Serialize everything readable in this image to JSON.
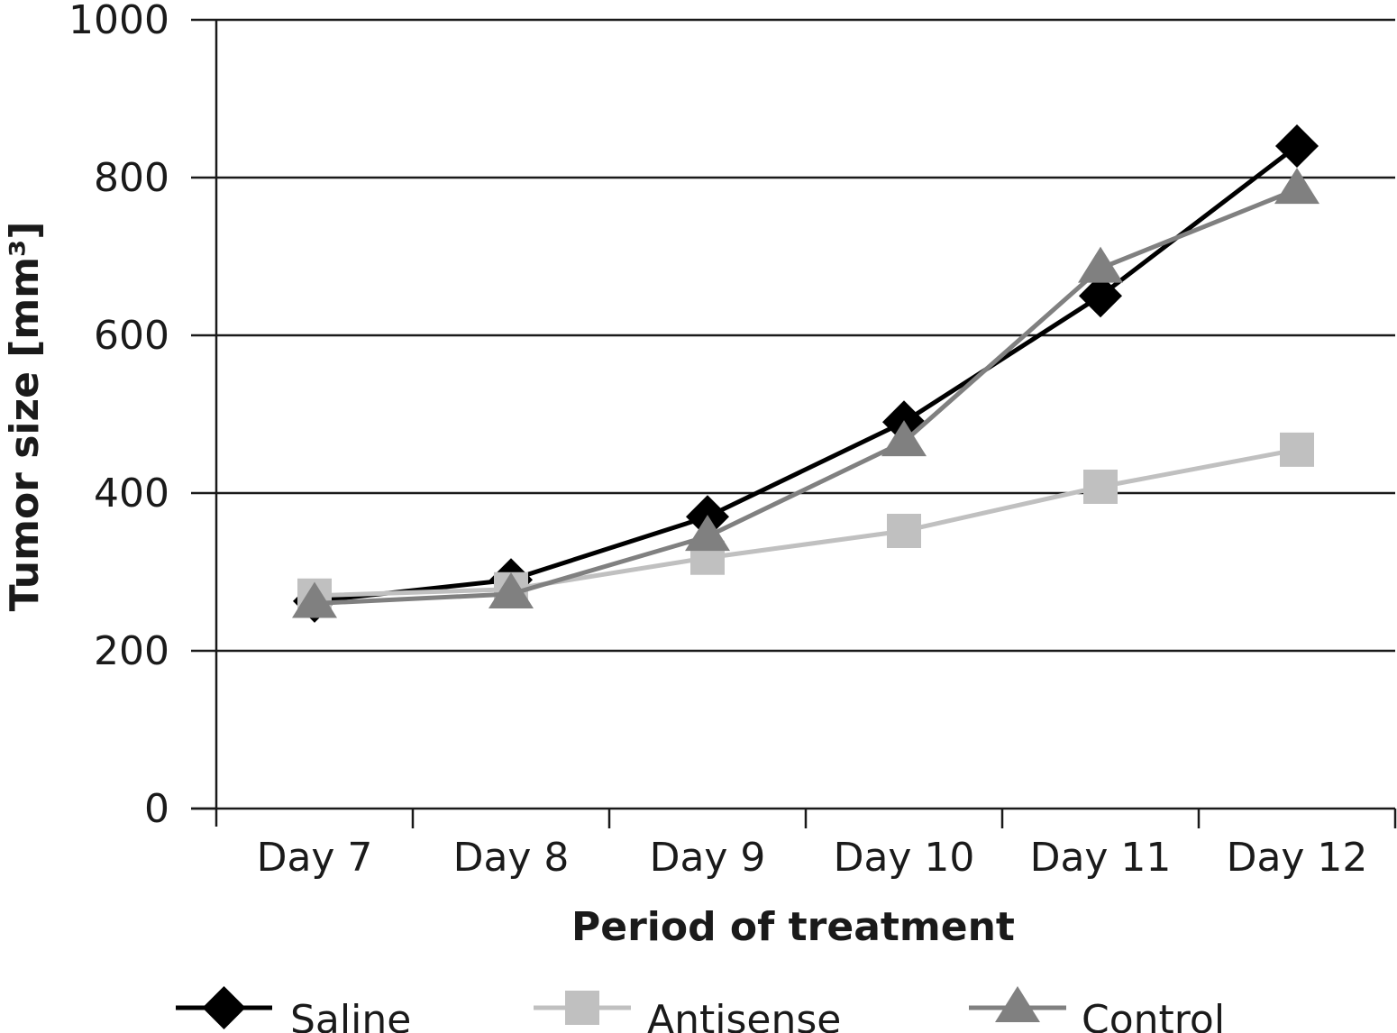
{
  "chart_data": {
    "type": "line",
    "title": "",
    "xlabel": "Period of treatment",
    "ylabel": "Tumor size [mm³]",
    "ylim": [
      0,
      1000
    ],
    "yticks": [
      0,
      200,
      400,
      600,
      800,
      1000
    ],
    "categories": [
      "Day 7",
      "Day 8",
      "Day 9",
      "Day 10",
      "Day 11",
      "Day 12"
    ],
    "grid": true,
    "legend_position": "bottom",
    "series": [
      {
        "name": "Saline",
        "marker": "diamond",
        "color": "#000000",
        "values": [
          263,
          290,
          370,
          490,
          650,
          840
        ]
      },
      {
        "name": "Antisense",
        "marker": "square",
        "color": "#c0c0c0",
        "values": [
          270,
          278,
          318,
          352,
          408,
          455
        ]
      },
      {
        "name": "Control",
        "marker": "triangle",
        "color": "#808080",
        "values": [
          260,
          272,
          345,
          465,
          685,
          785
        ]
      }
    ]
  }
}
